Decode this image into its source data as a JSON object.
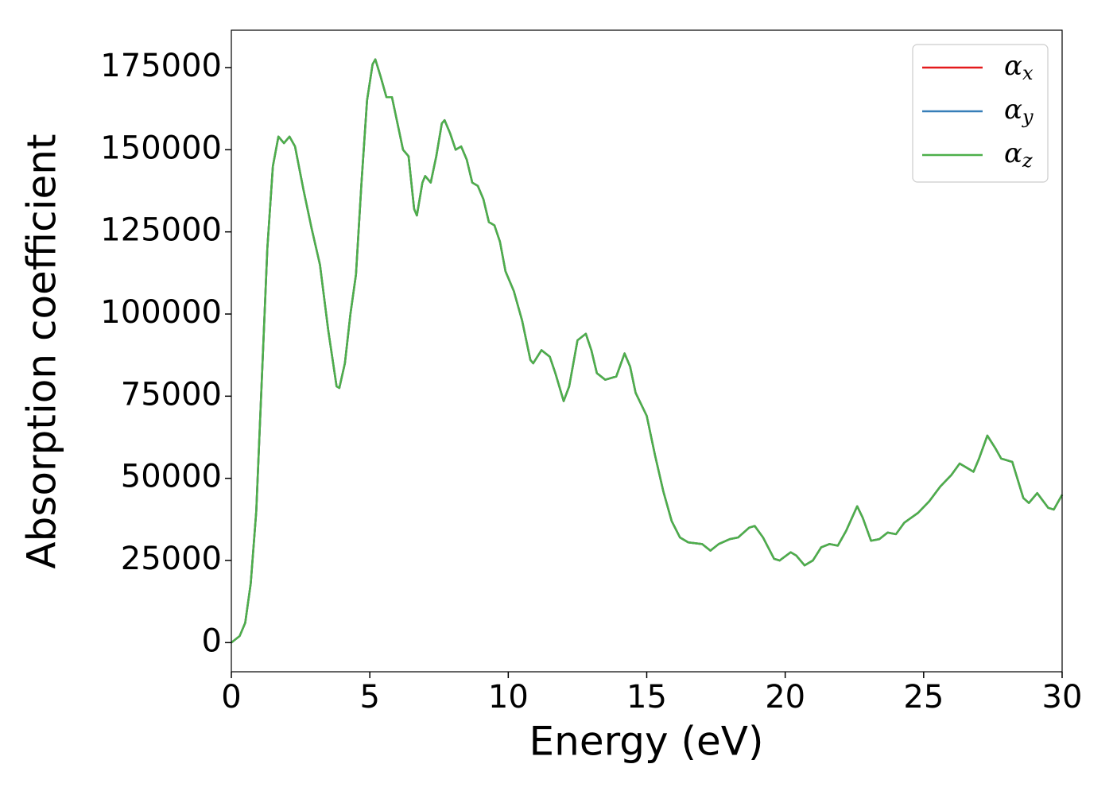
{
  "chart_data": {
    "type": "line",
    "xlabel": "Energy (eV)",
    "ylabel": "Absorption coefficient",
    "x": [
      0,
      0.3,
      0.5,
      0.7,
      0.9,
      1.1,
      1.3,
      1.5,
      1.7,
      1.9,
      2.1,
      2.3,
      2.6,
      2.9,
      3.2,
      3.5,
      3.8,
      3.9,
      4.1,
      4.3,
      4.5,
      4.7,
      4.9,
      5.1,
      5.2,
      5.4,
      5.6,
      5.8,
      6.0,
      6.2,
      6.4,
      6.6,
      6.7,
      6.9,
      7.0,
      7.2,
      7.4,
      7.6,
      7.7,
      7.9,
      8.1,
      8.3,
      8.5,
      8.7,
      8.9,
      9.1,
      9.3,
      9.5,
      9.7,
      9.9,
      10.2,
      10.5,
      10.8,
      10.9,
      11.2,
      11.5,
      11.7,
      12.0,
      12.2,
      12.5,
      12.8,
      13.0,
      13.2,
      13.5,
      13.9,
      14.2,
      14.4,
      14.6,
      15.0,
      15.3,
      15.6,
      15.9,
      16.2,
      16.5,
      17.0,
      17.3,
      17.6,
      18.0,
      18.3,
      18.7,
      18.9,
      19.2,
      19.6,
      19.8,
      20.2,
      20.4,
      20.7,
      21.0,
      21.3,
      21.6,
      21.9,
      22.2,
      22.6,
      22.8,
      23.1,
      23.4,
      23.7,
      24.0,
      24.3,
      24.8,
      25.2,
      25.6,
      26.0,
      26.3,
      26.6,
      26.8,
      27.0,
      27.3,
      27.6,
      27.8,
      28.2,
      28.6,
      28.8,
      29.1,
      29.5,
      29.7,
      30.0
    ],
    "series": [
      {
        "name": "αx",
        "color": "#e41a1c",
        "values": [
          0,
          2000,
          6000,
          18000,
          40000,
          80000,
          120000,
          145000,
          154000,
          152000,
          154000,
          151000,
          138000,
          126000,
          115000,
          95000,
          78000,
          77500,
          85000,
          100000,
          112000,
          140000,
          165000,
          176000,
          177500,
          172000,
          166000,
          166000,
          158000,
          150000,
          148000,
          132000,
          130000,
          140000,
          142000,
          140000,
          148000,
          158000,
          159000,
          155000,
          150000,
          151000,
          147000,
          140000,
          139000,
          135000,
          128000,
          127000,
          122000,
          113000,
          107000,
          98000,
          86000,
          85000,
          89000,
          87000,
          82000,
          73500,
          78000,
          92000,
          94000,
          89000,
          82000,
          80000,
          81000,
          88000,
          84000,
          76000,
          69000,
          57000,
          46000,
          37000,
          32000,
          30500,
          30000,
          28000,
          30000,
          31500,
          32000,
          35000,
          35500,
          32000,
          25500,
          25000,
          27500,
          26500,
          23500,
          25000,
          29000,
          30000,
          29500,
          34000,
          41500,
          38000,
          31000,
          31500,
          33500,
          33000,
          36500,
          39500,
          43000,
          47500,
          51000,
          54500,
          53000,
          52000,
          56000,
          63000,
          59000,
          56000,
          55000,
          44000,
          42500,
          45500,
          41000,
          40500,
          45000
        ]
      },
      {
        "name": "αy",
        "color": "#377eb8",
        "values": [
          0,
          2000,
          6000,
          18000,
          40000,
          80000,
          120000,
          145000,
          154000,
          152000,
          154000,
          151000,
          138000,
          126000,
          115000,
          95000,
          78000,
          77500,
          85000,
          100000,
          112000,
          140000,
          165000,
          176000,
          177500,
          172000,
          166000,
          166000,
          158000,
          150000,
          148000,
          132000,
          130000,
          140000,
          142000,
          140000,
          148000,
          158000,
          159000,
          155000,
          150000,
          151000,
          147000,
          140000,
          139000,
          135000,
          128000,
          127000,
          122000,
          113000,
          107000,
          98000,
          86000,
          85000,
          89000,
          87000,
          82000,
          73500,
          78000,
          92000,
          94000,
          89000,
          82000,
          80000,
          81000,
          88000,
          84000,
          76000,
          69000,
          57000,
          46000,
          37000,
          32000,
          30500,
          30000,
          28000,
          30000,
          31500,
          32000,
          35000,
          35500,
          32000,
          25500,
          25000,
          27500,
          26500,
          23500,
          25000,
          29000,
          30000,
          29500,
          34000,
          41500,
          38000,
          31000,
          31500,
          33500,
          33000,
          36500,
          39500,
          43000,
          47500,
          51000,
          54500,
          53000,
          52000,
          56000,
          63000,
          59000,
          56000,
          55000,
          44000,
          42500,
          45500,
          41000,
          40500,
          45000
        ]
      },
      {
        "name": "αz",
        "color": "#4daf4a",
        "values": [
          0,
          2000,
          6000,
          18000,
          40000,
          80000,
          120000,
          145000,
          154000,
          152000,
          154000,
          151000,
          138000,
          126000,
          115000,
          95000,
          78000,
          77500,
          85000,
          100000,
          112000,
          140000,
          165000,
          176000,
          177500,
          172000,
          166000,
          166000,
          158000,
          150000,
          148000,
          132000,
          130000,
          140000,
          142000,
          140000,
          148000,
          158000,
          159000,
          155000,
          150000,
          151000,
          147000,
          140000,
          139000,
          135000,
          128000,
          127000,
          122000,
          113000,
          107000,
          98000,
          86000,
          85000,
          89000,
          87000,
          82000,
          73500,
          78000,
          92000,
          94000,
          89000,
          82000,
          80000,
          81000,
          88000,
          84000,
          76000,
          69000,
          57000,
          46000,
          37000,
          32000,
          30500,
          30000,
          28000,
          30000,
          31500,
          32000,
          35000,
          35500,
          32000,
          25500,
          25000,
          27500,
          26500,
          23500,
          25000,
          29000,
          30000,
          29500,
          34000,
          41500,
          38000,
          31000,
          31500,
          33500,
          33000,
          36500,
          39500,
          43000,
          47500,
          51000,
          54500,
          53000,
          52000,
          56000,
          63000,
          59000,
          56000,
          55000,
          44000,
          42500,
          45500,
          41000,
          40500,
          45000
        ]
      }
    ],
    "xlim": [
      0,
      30
    ],
    "xticks": [
      0,
      5,
      10,
      15,
      20,
      25,
      30
    ],
    "ylim": [
      -8875,
      186375
    ],
    "yticks": [
      0,
      25000,
      50000,
      75000,
      100000,
      125000,
      150000,
      175000
    ],
    "legend": "upper right",
    "grid": false
  }
}
